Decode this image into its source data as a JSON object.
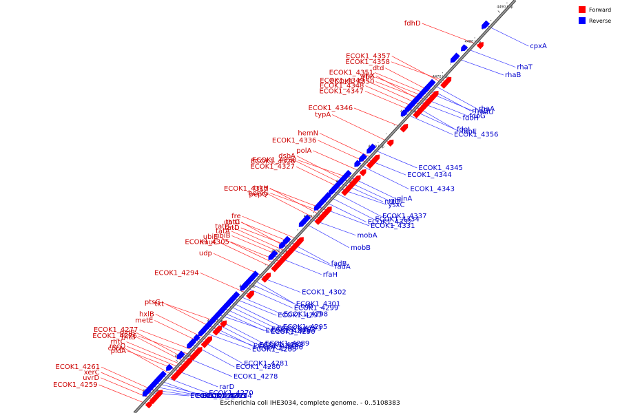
{
  "colors": {
    "forward": "#ff0000",
    "reverse": "#0000ff",
    "forward_label": "#cc0000",
    "reverse_label": "#0000cc",
    "forward_leader": "#ff2a2a",
    "reverse_leader": "#3a3aff",
    "backbone": "#999999",
    "backbone_edge": "#444444"
  },
  "legend": {
    "forward": "Forward",
    "reverse": "Reverse"
  },
  "caption": "Escherichia coli IHE3034, complete genome. - 0..5108383",
  "ticks": [
    "4380 kbp",
    "4390 kbp",
    "4400 kbp",
    "4410 kbp",
    "4420 kbp",
    "4430 kbp",
    "4440 kbp",
    "4450 kbp",
    "4460 kbp",
    "4470 kbp",
    "4480 kbp",
    "4490 kbp"
  ],
  "forward_genes": [
    {
      "label": "ECOK1_4259",
      "t": 0.03
    },
    {
      "label": "uvrD",
      "t": 0.042
    },
    {
      "label": "xerC",
      "t": 0.05
    },
    {
      "label": "ECOK1_4261",
      "t": 0.058
    },
    {
      "label": "corA",
      "t": 0.098
    },
    {
      "label": "pldA",
      "t": 0.112
    },
    {
      "label": "recQ",
      "t": 0.118
    },
    {
      "label": "rhtC",
      "t": 0.124
    },
    {
      "label": "rhtB",
      "t": 0.13
    },
    {
      "label": "pldB",
      "t": 0.136
    },
    {
      "label": "ECOK1_4276",
      "t": 0.148
    },
    {
      "label": "ECOK1_4277",
      "t": 0.158
    },
    {
      "label": "metE",
      "t": 0.176
    },
    {
      "label": "hxlB",
      "t": 0.186
    },
    {
      "label": "ptsG",
      "t": 0.21
    },
    {
      "label": "tkt",
      "t": 0.226
    },
    {
      "label": "ECOK1_4294",
      "t": 0.296
    },
    {
      "label": "udp",
      "t": 0.338
    },
    {
      "label": "rmuC",
      "t": 0.36
    },
    {
      "label": "ubiE",
      "t": 0.368
    },
    {
      "label": "ECOK1_4305",
      "t": 0.376
    },
    {
      "label": "ubiB",
      "t": 0.386
    },
    {
      "label": "tatA",
      "t": 0.392
    },
    {
      "label": "tatB",
      "t": 0.398
    },
    {
      "label": "tatC",
      "t": 0.404
    },
    {
      "label": "tatD",
      "t": 0.41
    },
    {
      "label": "ubiD",
      "t": 0.418
    },
    {
      "label": "fre",
      "t": 0.428
    },
    {
      "label": "pepQ",
      "t": 0.476
    },
    {
      "label": "trkH",
      "t": 0.486
    },
    {
      "label": "hemG",
      "t": 0.494
    },
    {
      "label": "ECOK1_4317",
      "t": 0.5
    },
    {
      "label": "ECOK1_4327",
      "t": 0.548
    },
    {
      "label": "ECOK1_4328",
      "t": 0.556
    },
    {
      "label": "dsbA",
      "t": 0.564
    },
    {
      "label": "ECOK1_4330",
      "t": 0.574
    },
    {
      "label": "polA",
      "t": 0.592
    },
    {
      "label": "ECOK1_4336",
      "t": 0.612
    },
    {
      "label": "hemN",
      "t": 0.624
    },
    {
      "label": "typA",
      "t": 0.664
    },
    {
      "label": "ECOK1_4346",
      "t": 0.7
    },
    {
      "label": "ECOK1_4347",
      "t": 0.736
    },
    {
      "label": "ECOK1_4348",
      "t": 0.744
    },
    {
      "label": "ECOK1_4349",
      "t": 0.752
    },
    {
      "label": "yihX",
      "t": 0.758
    },
    {
      "label": "ECOK1_4350",
      "t": 0.764
    },
    {
      "label": "rbn",
      "t": 0.77
    },
    {
      "label": "ECOK1_4351",
      "t": 0.776
    },
    {
      "label": "dtd",
      "t": 0.782
    },
    {
      "label": "ECOK1_4357",
      "t": 0.806
    },
    {
      "label": "ECOK1_4358",
      "t": 0.812
    },
    {
      "label": "fdhD",
      "t": 0.9
    }
  ],
  "reverse_genes": [
    {
      "label": "ECOK1_4268",
      "t": 0.038
    },
    {
      "label": "ECOK1_4267",
      "t": 0.046
    },
    {
      "label": "ECOK1_4265",
      "t": 0.054
    },
    {
      "label": "ECOK1_4264",
      "t": 0.062
    },
    {
      "label": "ECOK1_4263",
      "t": 0.07
    },
    {
      "label": "ECOK1_4270",
      "t": 0.08
    },
    {
      "label": "rarD",
      "t": 0.1
    },
    {
      "label": "ECOK1_4278",
      "t": 0.13
    },
    {
      "label": "ECOK1_4280",
      "t": 0.158
    },
    {
      "label": "ECOK1_4281",
      "t": 0.172
    },
    {
      "label": "ECOK1_4285",
      "t": 0.186
    },
    {
      "label": "ECOK1_4286",
      "t": 0.196
    },
    {
      "label": "ECOK1_4287",
      "t": 0.204
    },
    {
      "label": "ECOK1_4288",
      "t": 0.212
    },
    {
      "label": "ECOK1_4289",
      "t": 0.22
    },
    {
      "label": "ECOK1_4290",
      "t": 0.228
    },
    {
      "label": "ECOK1_4291",
      "t": 0.236
    },
    {
      "label": "ECOK1_4292",
      "t": 0.244
    },
    {
      "label": "ECOK1_4293",
      "t": 0.252
    },
    {
      "label": "ECOK1_4295",
      "t": 0.26
    },
    {
      "label": "ECOK1_4297",
      "t": 0.268
    },
    {
      "label": "ECOK1_4298",
      "t": 0.276
    },
    {
      "label": "ECOK1_4299",
      "t": 0.296
    },
    {
      "label": "eda",
      "t": 0.306
    },
    {
      "label": "ECOK1_4301",
      "t": 0.316
    },
    {
      "label": "ECOK1_4302",
      "t": 0.324
    },
    {
      "label": "rfaH",
      "t": 0.372
    },
    {
      "label": "fadA",
      "t": 0.396
    },
    {
      "label": "fadB",
      "t": 0.408
    },
    {
      "label": "mobB",
      "t": 0.452
    },
    {
      "label": "mobA",
      "t": 0.462
    },
    {
      "label": "ECOK1_4331",
      "t": 0.49
    },
    {
      "label": "ECOK1_4332",
      "t": 0.504
    },
    {
      "label": "ECOK1_4334",
      "t": 0.516
    },
    {
      "label": "ECOK1_4337",
      "t": 0.528
    },
    {
      "label": "ysxC",
      "t": 0.536
    },
    {
      "label": "ntrC",
      "t": 0.548
    },
    {
      "label": "glnL",
      "t": 0.556
    },
    {
      "label": "glnA",
      "t": 0.566
    },
    {
      "label": "ECOK1_4343",
      "t": 0.594
    },
    {
      "label": "ECOK1_4344",
      "t": 0.608
    },
    {
      "label": "ECOK1_4345",
      "t": 0.63
    },
    {
      "label": "ECOK1_4356",
      "t": 0.716
    },
    {
      "label": "fdhE",
      "t": 0.728
    },
    {
      "label": "fdoI",
      "t": 0.738
    },
    {
      "label": "fdoH",
      "t": 0.746
    },
    {
      "label": "fdoG",
      "t": 0.756
    },
    {
      "label": "rhaU",
      "t": 0.77
    },
    {
      "label": "rhaD",
      "t": 0.778
    },
    {
      "label": "rhaA",
      "t": 0.788
    },
    {
      "label": "rhaB",
      "t": 0.85
    },
    {
      "label": "rhaT",
      "t": 0.874
    },
    {
      "label": "cpxA",
      "t": 0.93
    }
  ]
}
